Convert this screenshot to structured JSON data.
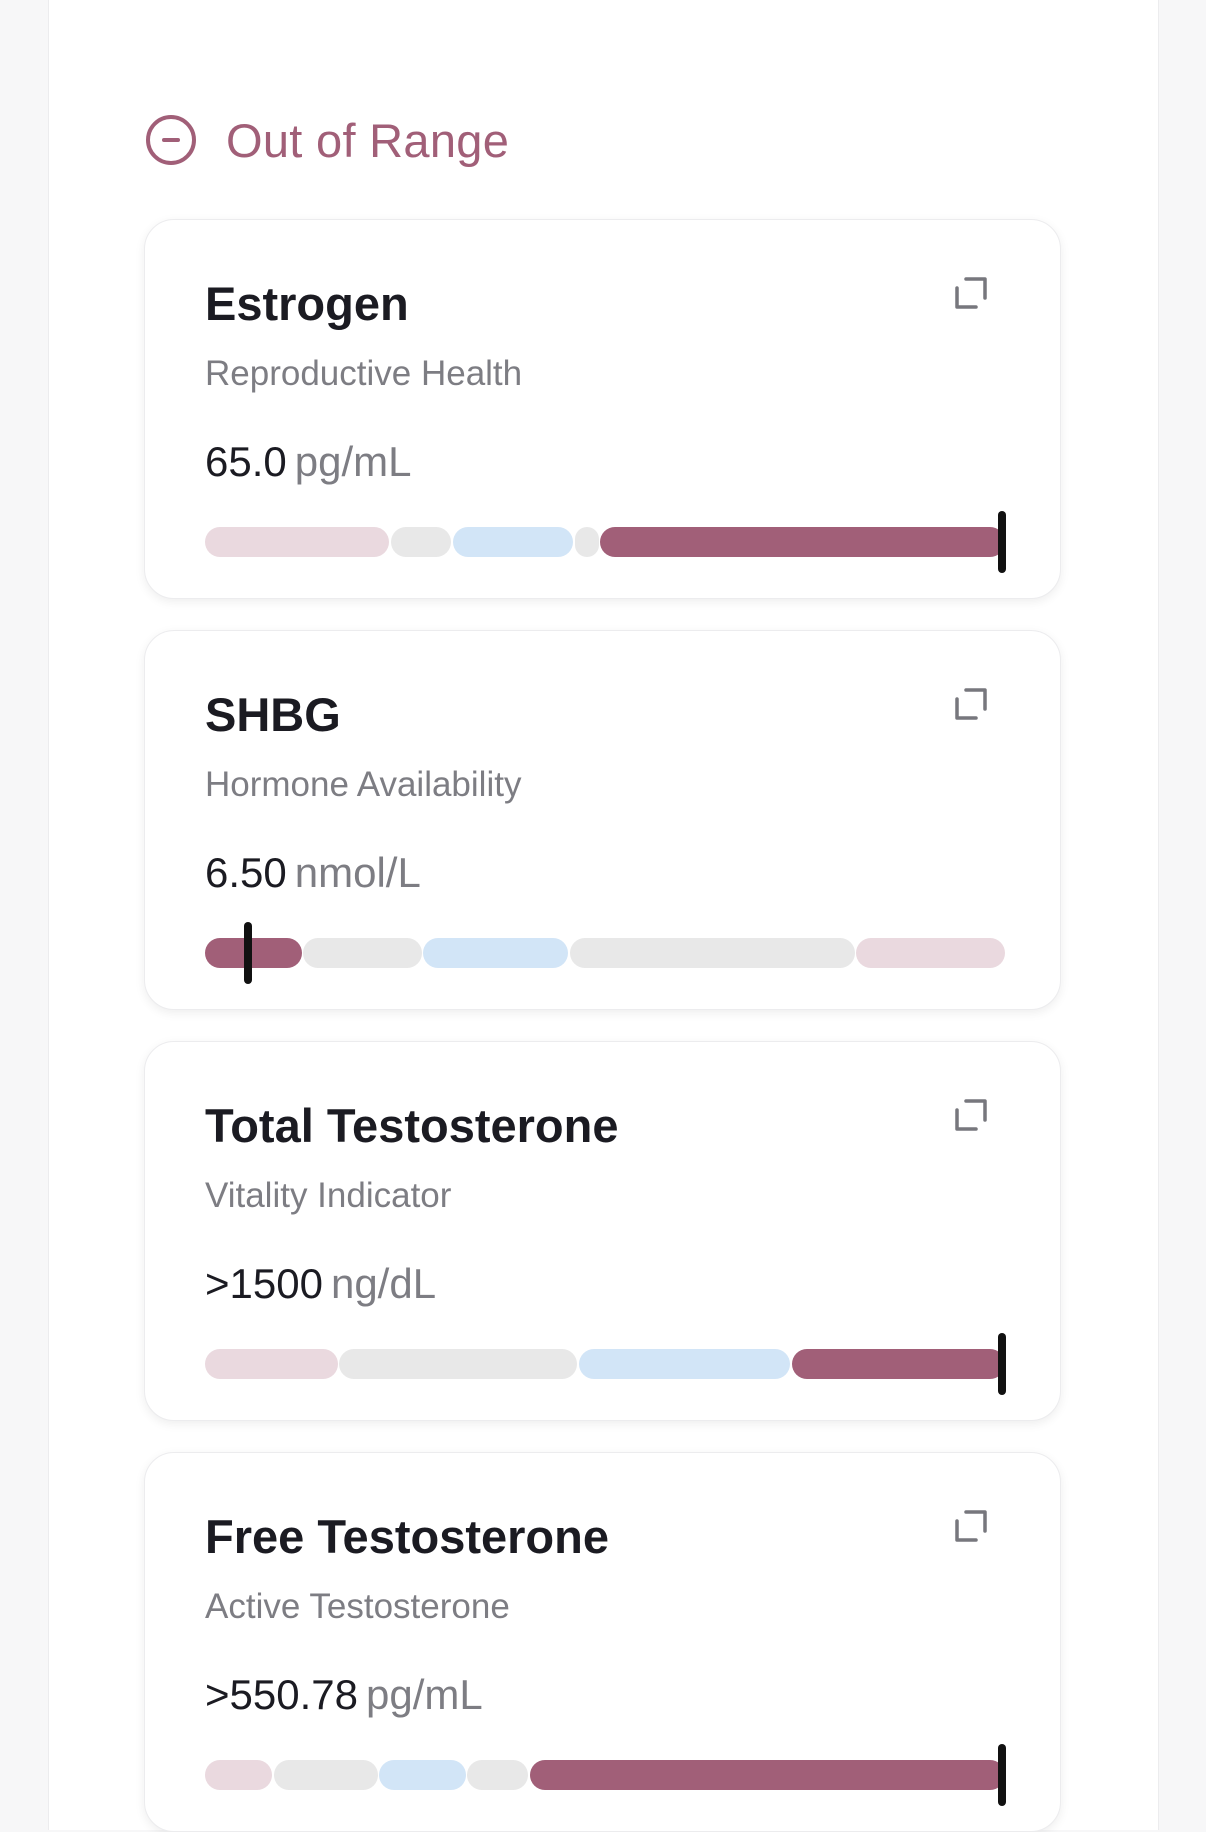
{
  "section": {
    "title": "Out of Range",
    "icon": "minus-circle-icon"
  },
  "colors": {
    "accent": "#a15f78",
    "low_range": "#ead9df",
    "neutral": "#e8e8e8",
    "optimal": "#d2e5f7",
    "active": "#a15f78",
    "marker": "#111111"
  },
  "cards": [
    {
      "title": "Estrogen",
      "subtitle": "Reproductive Health",
      "value": "65.0",
      "unit": "pg/mL",
      "marker_fraction": 0.996,
      "segments": [
        {
          "kind": "low_range",
          "from": 0.0,
          "to": 0.23
        },
        {
          "kind": "neutral",
          "from": 0.232,
          "to": 0.308
        },
        {
          "kind": "optimal",
          "from": 0.31,
          "to": 0.46
        },
        {
          "kind": "neutral",
          "from": 0.462,
          "to": 0.492
        },
        {
          "kind": "active",
          "from": 0.494,
          "to": 1.0
        }
      ]
    },
    {
      "title": "SHBG",
      "subtitle": "Hormone Availability",
      "value": "6.50",
      "unit": "nmol/L",
      "marker_fraction": 0.054,
      "segments": [
        {
          "kind": "active",
          "from": 0.0,
          "to": 0.121
        },
        {
          "kind": "neutral",
          "from": 0.123,
          "to": 0.271
        },
        {
          "kind": "optimal",
          "from": 0.273,
          "to": 0.454
        },
        {
          "kind": "neutral",
          "from": 0.456,
          "to": 0.812
        },
        {
          "kind": "low_range",
          "from": 0.814,
          "to": 1.0
        }
      ]
    },
    {
      "title": "Total Testosterone",
      "subtitle": "Vitality Indicator",
      "value": ">1500",
      "unit": "ng/dL",
      "marker_fraction": 0.996,
      "segments": [
        {
          "kind": "low_range",
          "from": 0.0,
          "to": 0.166
        },
        {
          "kind": "neutral",
          "from": 0.168,
          "to": 0.465
        },
        {
          "kind": "optimal",
          "from": 0.467,
          "to": 0.731
        },
        {
          "kind": "active",
          "from": 0.734,
          "to": 1.0
        }
      ]
    },
    {
      "title": "Free Testosterone",
      "subtitle": "Active Testosterone",
      "value": ">550.78",
      "unit": "pg/mL",
      "marker_fraction": 0.996,
      "segments": [
        {
          "kind": "low_range",
          "from": 0.0,
          "to": 0.084
        },
        {
          "kind": "neutral",
          "from": 0.086,
          "to": 0.216
        },
        {
          "kind": "optimal",
          "from": 0.218,
          "to": 0.326
        },
        {
          "kind": "neutral",
          "from": 0.328,
          "to": 0.404
        },
        {
          "kind": "active",
          "from": 0.406,
          "to": 1.0
        }
      ]
    }
  ]
}
